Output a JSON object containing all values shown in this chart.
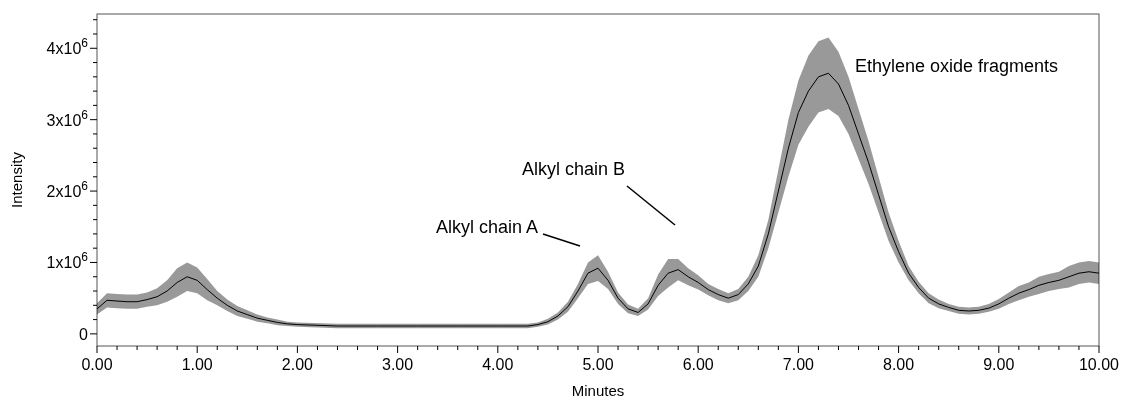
{
  "chart_data": {
    "type": "line",
    "xlabel": "Minutes",
    "ylabel": "Intensity",
    "xlim": [
      0,
      10
    ],
    "ylim": [
      -170000,
      4480000
    ],
    "xticks": [
      {
        "value": 0,
        "label": "0.00"
      },
      {
        "value": 0.2,
        "label": null
      },
      {
        "value": 0.4,
        "label": null
      },
      {
        "value": 0.6,
        "label": null
      },
      {
        "value": 0.8,
        "label": null
      },
      {
        "value": 1,
        "label": "1.00"
      },
      {
        "value": 1.2,
        "label": null
      },
      {
        "value": 1.4,
        "label": null
      },
      {
        "value": 1.6,
        "label": null
      },
      {
        "value": 1.8,
        "label": null
      },
      {
        "value": 2,
        "label": "2.00"
      },
      {
        "value": 2.2,
        "label": null
      },
      {
        "value": 2.4,
        "label": null
      },
      {
        "value": 2.6,
        "label": null
      },
      {
        "value": 2.8,
        "label": null
      },
      {
        "value": 3,
        "label": "3.00"
      },
      {
        "value": 3.2,
        "label": null
      },
      {
        "value": 3.4,
        "label": null
      },
      {
        "value": 3.6,
        "label": null
      },
      {
        "value": 3.8,
        "label": null
      },
      {
        "value": 4,
        "label": "4.00"
      },
      {
        "value": 4.2,
        "label": null
      },
      {
        "value": 4.4,
        "label": null
      },
      {
        "value": 4.6,
        "label": null
      },
      {
        "value": 4.8,
        "label": null
      },
      {
        "value": 5,
        "label": "5.00"
      },
      {
        "value": 5.2,
        "label": null
      },
      {
        "value": 5.4,
        "label": null
      },
      {
        "value": 5.6,
        "label": null
      },
      {
        "value": 5.8,
        "label": null
      },
      {
        "value": 6,
        "label": "6.00"
      },
      {
        "value": 6.2,
        "label": null
      },
      {
        "value": 6.4,
        "label": null
      },
      {
        "value": 6.6,
        "label": null
      },
      {
        "value": 6.8,
        "label": null
      },
      {
        "value": 7,
        "label": "7.00"
      },
      {
        "value": 7.2,
        "label": null
      },
      {
        "value": 7.4,
        "label": null
      },
      {
        "value": 7.6,
        "label": null
      },
      {
        "value": 7.8,
        "label": null
      },
      {
        "value": 8,
        "label": "8.00"
      },
      {
        "value": 8.2,
        "label": null
      },
      {
        "value": 8.4,
        "label": null
      },
      {
        "value": 8.6,
        "label": null
      },
      {
        "value": 8.8,
        "label": null
      },
      {
        "value": 9,
        "label": "9.00"
      },
      {
        "value": 9.2,
        "label": null
      },
      {
        "value": 9.4,
        "label": null
      },
      {
        "value": 9.6,
        "label": null
      },
      {
        "value": 9.8,
        "label": null
      },
      {
        "value": 10,
        "label": "10.00"
      }
    ],
    "yticks": [
      0,
      {
        "value": 200000,
        "label": null
      },
      {
        "value": 400000,
        "label": null
      },
      {
        "value": 600000,
        "label": null
      },
      {
        "value": 800000,
        "label": null
      },
      {
        "value": 1000000,
        "label": "1x10$^{6}$"
      },
      {
        "value": 1200000,
        "label": null
      },
      {
        "value": 1400000,
        "label": null
      },
      {
        "value": 1600000,
        "label": null
      },
      {
        "value": 1800000,
        "label": null
      },
      {
        "value": 2000000,
        "label": "2x10$^{6}$"
      },
      {
        "value": 2200000,
        "label": null
      },
      {
        "value": 2400000,
        "label": null
      },
      {
        "value": 2600000,
        "label": null
      },
      {
        "value": 2800000,
        "label": null
      },
      {
        "value": 3000000,
        "label": "3x10$^{6}$"
      },
      {
        "value": 3200000,
        "label": null
      },
      {
        "value": 3400000,
        "label": null
      },
      {
        "value": 3600000,
        "label": null
      },
      {
        "value": 3800000,
        "label": null
      },
      {
        "value": 4000000,
        "label": "4x10$^{6}$"
      },
      {
        "value": 4200000,
        "label": null
      },
      {
        "value": 4400000,
        "label": null
      }
    ],
    "x": [
      0,
      0.1,
      0.2,
      0.3,
      0.4,
      0.5,
      0.6,
      0.7,
      0.8,
      0.9,
      1,
      1.1,
      1.2,
      1.3,
      1.4,
      1.5,
      1.6,
      1.7,
      1.8,
      1.9,
      2,
      2.4,
      2.8,
      3.2,
      3.6,
      4,
      4.3,
      4.4,
      4.5,
      4.6,
      4.7,
      4.8,
      4.9,
      5,
      5.1,
      5.2,
      5.3,
      5.4,
      5.5,
      5.6,
      5.7,
      5.8,
      5.9,
      6,
      6.1,
      6.2,
      6.3,
      6.4,
      6.5,
      6.6,
      6.7,
      6.8,
      6.9,
      7,
      7.1,
      7.2,
      7.3,
      7.4,
      7.5,
      7.6,
      7.7,
      7.8,
      7.9,
      8,
      8.1,
      8.2,
      8.3,
      8.4,
      8.5,
      8.6,
      8.7,
      8.8,
      8.9,
      9,
      9.1,
      9.2,
      9.3,
      9.4,
      9.5,
      9.6,
      9.7,
      9.8,
      9.9,
      10
    ],
    "series": [
      {
        "color": "#000000",
        "values": [
          350000,
          470000,
          460000,
          450000,
          450000,
          480000,
          520000,
          600000,
          720000,
          800000,
          750000,
          620000,
          500000,
          400000,
          320000,
          270000,
          220000,
          190000,
          160000,
          140000,
          130000,
          110000,
          110000,
          110000,
          110000,
          110000,
          110000,
          130000,
          170000,
          250000,
          380000,
          600000,
          850000,
          920000,
          750000,
          500000,
          350000,
          300000,
          420000,
          680000,
          850000,
          900000,
          800000,
          720000,
          620000,
          550000,
          500000,
          550000,
          700000,
          950000,
          1400000,
          2000000,
          2600000,
          3100000,
          3400000,
          3600000,
          3650000,
          3500000,
          3200000,
          2800000,
          2400000,
          1950000,
          1500000,
          1150000,
          850000,
          650000,
          500000,
          420000,
          370000,
          330000,
          320000,
          330000,
          360000,
          420000,
          500000,
          570000,
          620000,
          680000,
          720000,
          750000,
          800000,
          850000,
          870000,
          850000
        ],
        "lower": [
          270000,
          370000,
          360000,
          350000,
          350000,
          380000,
          400000,
          450000,
          520000,
          600000,
          570000,
          470000,
          400000,
          320000,
          250000,
          210000,
          170000,
          150000,
          120000,
          110000,
          100000,
          80000,
          80000,
          80000,
          80000,
          80000,
          80000,
          100000,
          130000,
          200000,
          310000,
          500000,
          700000,
          740000,
          630000,
          420000,
          290000,
          250000,
          340000,
          530000,
          650000,
          750000,
          680000,
          620000,
          540000,
          470000,
          430000,
          470000,
          600000,
          800000,
          1200000,
          1700000,
          2200000,
          2650000,
          2900000,
          3100000,
          3150000,
          3050000,
          2800000,
          2450000,
          2100000,
          1700000,
          1300000,
          1000000,
          750000,
          570000,
          430000,
          360000,
          320000,
          280000,
          270000,
          280000,
          310000,
          350000,
          420000,
          470000,
          520000,
          560000,
          600000,
          630000,
          650000,
          700000,
          720000,
          700000
        ],
        "upper": [
          430000,
          570000,
          560000,
          550000,
          550000,
          580000,
          640000,
          750000,
          920000,
          1000000,
          930000,
          770000,
          600000,
          480000,
          390000,
          330000,
          270000,
          230000,
          200000,
          170000,
          160000,
          140000,
          140000,
          140000,
          140000,
          140000,
          140000,
          160000,
          210000,
          300000,
          450000,
          700000,
          1000000,
          1100000,
          870000,
          580000,
          410000,
          350000,
          500000,
          830000,
          1050000,
          1050000,
          920000,
          820000,
          700000,
          630000,
          570000,
          630000,
          800000,
          1100000,
          1600000,
          2300000,
          3000000,
          3550000,
          3900000,
          4100000,
          4150000,
          3950000,
          3600000,
          3150000,
          2700000,
          2200000,
          1700000,
          1300000,
          950000,
          730000,
          570000,
          480000,
          420000,
          380000,
          370000,
          380000,
          420000,
          490000,
          580000,
          670000,
          720000,
          800000,
          840000,
          870000,
          950000,
          1000000,
          1020000,
          1000000
        ]
      }
    ],
    "annotations": [
      "Alkyl chain A",
      "Alkyl chain B",
      "Ethylene oxide fragments"
    ]
  }
}
